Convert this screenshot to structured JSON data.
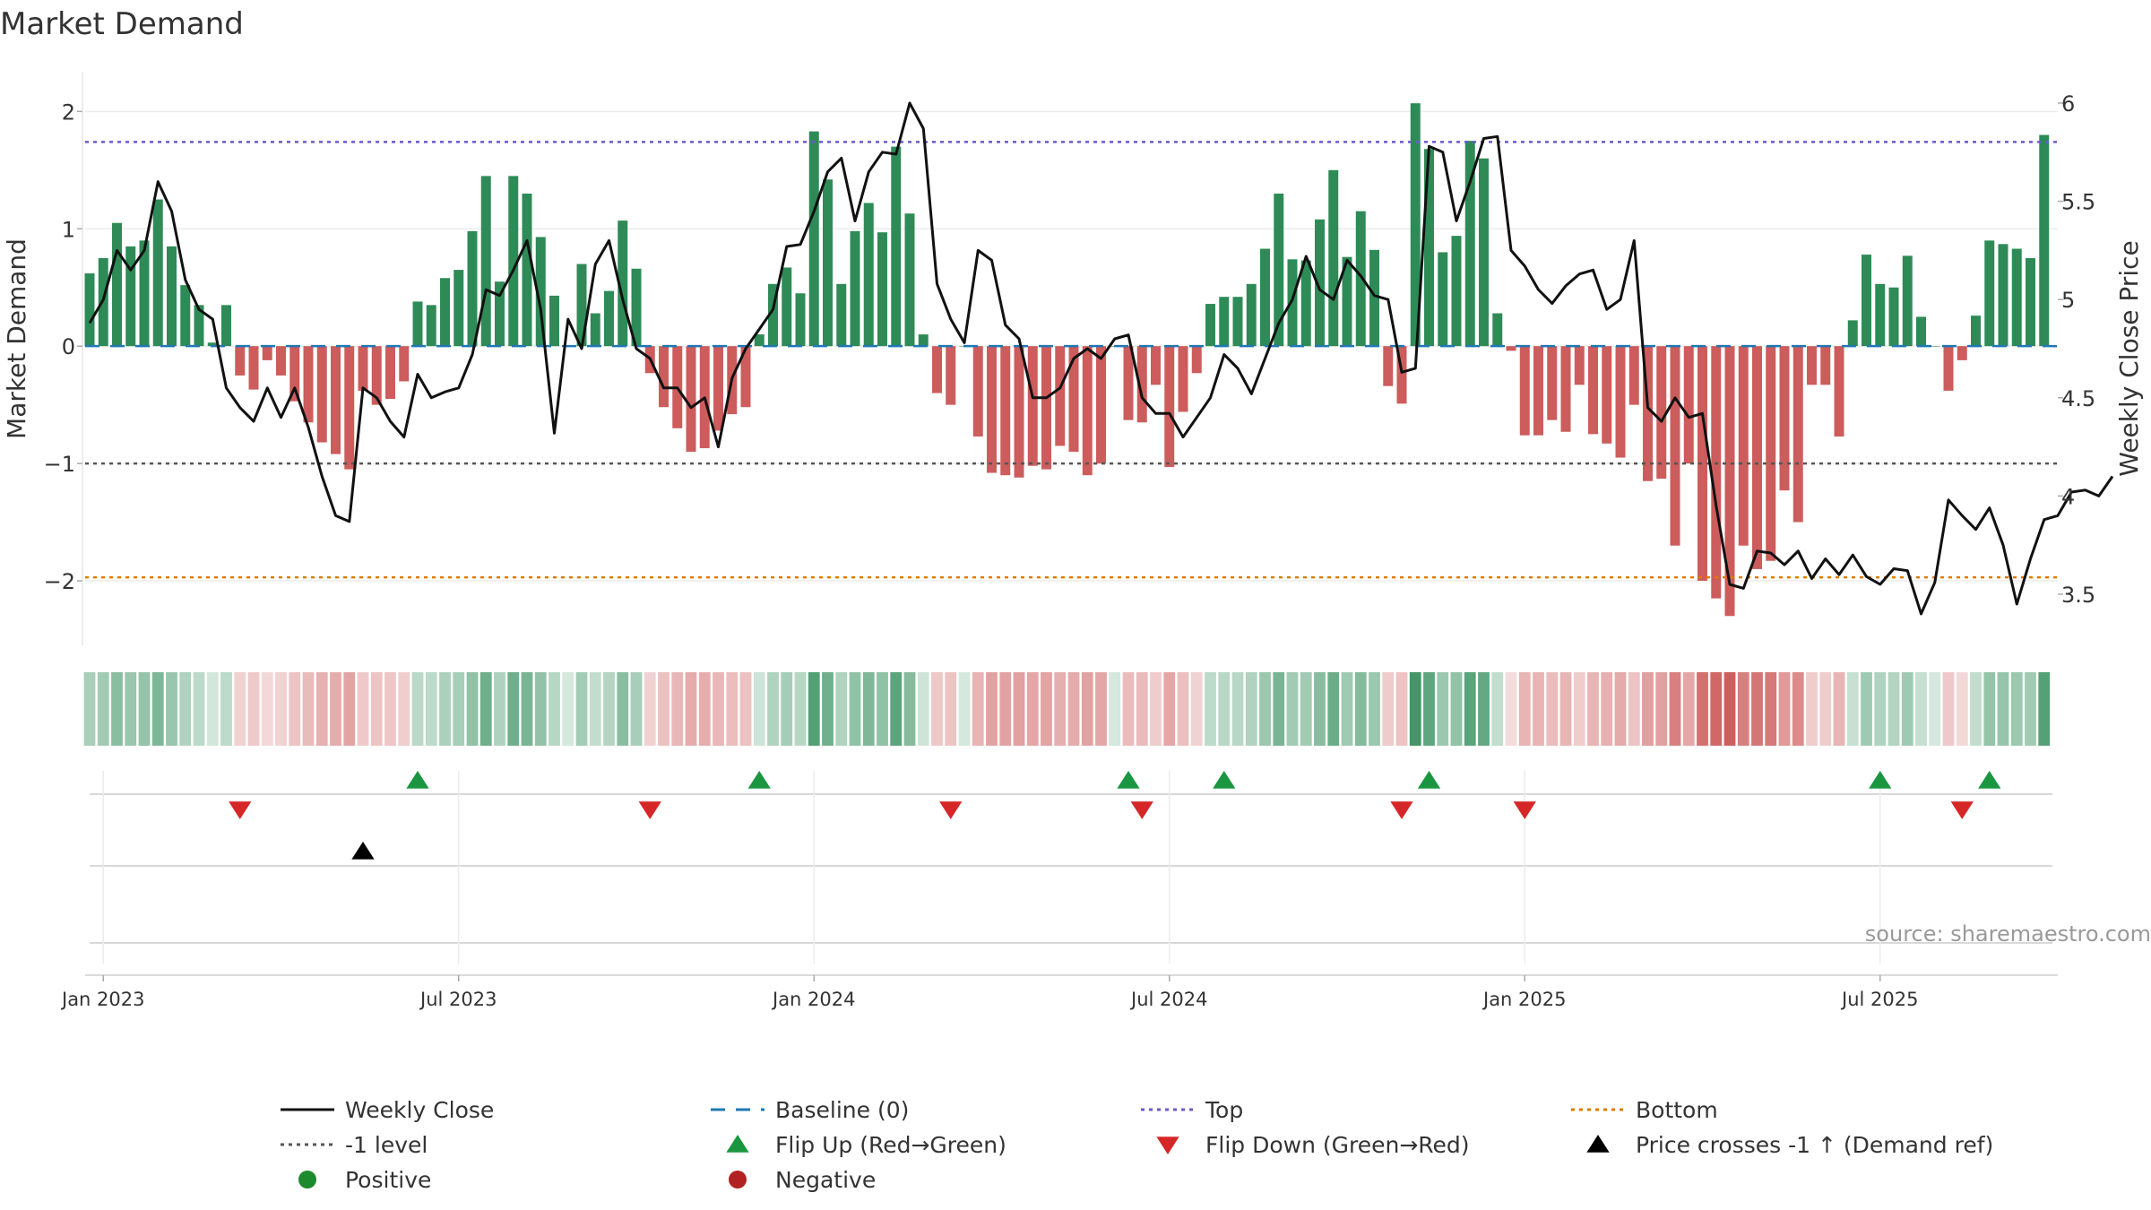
{
  "title": "Market Demand",
  "source": "source: sharemaestro.com",
  "colors": {
    "positive_bar": "#2e8b57",
    "negative_bar": "#cd5c5c",
    "price_line": "#111111",
    "baseline": "#1f77b4",
    "top_line": "#6a5acd",
    "minus1_line": "#555555",
    "bottom_line": "#e07b00",
    "flip_up": "#1a9641",
    "flip_down": "#d62728",
    "cross": "#000000",
    "positive_dot": "#1e8a2e",
    "negative_dot": "#b22222"
  },
  "chart_data": {
    "type": "bar",
    "title": "Market Demand",
    "ylabel": "Market Demand",
    "y2label": "Weekly Close Price",
    "ylim": [
      -2.55,
      2.4
    ],
    "y2lim": [
      3.2,
      6.2
    ],
    "yticks": [
      "−2",
      "−1",
      "0",
      "1",
      "2"
    ],
    "y2ticks": [
      "3.5",
      "4",
      "4.5",
      "5",
      "5.5",
      "6"
    ],
    "x_ticks": [
      {
        "label": "Jan 2023",
        "week": 1
      },
      {
        "label": "Jul 2023",
        "week": 27
      },
      {
        "label": "Jan 2024",
        "week": 53
      },
      {
        "label": "Jul 2024",
        "week": 79
      },
      {
        "label": "Jan 2025",
        "week": 105
      },
      {
        "label": "Jul 2025",
        "week": 131
      }
    ],
    "reference_lines": {
      "top": 1.74,
      "minus1": -1.0,
      "bottom": -1.97,
      "baseline": 0
    },
    "demand": [
      0.62,
      0.75,
      1.05,
      0.85,
      0.9,
      1.25,
      0.85,
      0.52,
      0.35,
      0.03,
      0.35,
      -0.25,
      -0.37,
      -0.12,
      -0.25,
      -0.47,
      -0.65,
      -0.82,
      -0.92,
      -1.05,
      -0.38,
      -0.5,
      -0.45,
      -0.3,
      0.38,
      0.35,
      0.58,
      0.65,
      0.98,
      1.45,
      0.55,
      1.45,
      1.3,
      0.93,
      0.43,
      0.0,
      0.7,
      0.28,
      0.47,
      1.07,
      0.66,
      -0.23,
      -0.52,
      -0.7,
      -0.9,
      -0.87,
      -0.72,
      -0.58,
      -0.52,
      0.1,
      0.53,
      0.67,
      0.45,
      1.83,
      1.42,
      0.53,
      0.98,
      1.22,
      0.97,
      1.7,
      1.13,
      0.1,
      -0.4,
      -0.5,
      0.0,
      -0.77,
      -1.08,
      -1.1,
      -1.12,
      -1.02,
      -1.05,
      -0.85,
      -0.9,
      -1.1,
      -1.0,
      0.0,
      -0.63,
      -0.65,
      -0.33,
      -1.03,
      -0.56,
      -0.23,
      0.36,
      0.42,
      0.42,
      0.53,
      0.83,
      1.3,
      0.74,
      0.73,
      1.08,
      1.5,
      0.76,
      1.15,
      0.82,
      -0.34,
      -0.49,
      2.07,
      1.68,
      0.8,
      0.94,
      1.75,
      1.6,
      0.28,
      -0.04,
      -0.76,
      -0.76,
      -0.63,
      -0.73,
      -0.33,
      -0.75,
      -0.83,
      -0.95,
      -0.5,
      -1.15,
      -1.13,
      -1.7,
      -1.0,
      -2.0,
      -2.15,
      -2.3,
      -1.7,
      -1.9,
      -1.83,
      -1.23,
      -1.5,
      -0.33,
      -0.33,
      -0.77,
      0.22,
      0.78,
      0.53,
      0.5,
      0.77,
      0.25,
      0.0,
      -0.38,
      -0.12,
      0.26,
      0.9,
      0.87,
      0.83,
      0.75,
      1.8
    ],
    "price": [
      4.88,
      5.0,
      5.25,
      5.15,
      5.25,
      5.6,
      5.45,
      5.1,
      4.95,
      4.9,
      4.55,
      4.45,
      4.38,
      4.55,
      4.4,
      4.55,
      4.35,
      4.1,
      3.9,
      3.87,
      4.55,
      4.5,
      4.38,
      4.3,
      4.62,
      4.5,
      4.53,
      4.55,
      4.72,
      5.05,
      5.02,
      5.15,
      5.3,
      4.95,
      4.32,
      4.9,
      4.75,
      5.18,
      5.3,
      5.0,
      4.75,
      4.7,
      4.55,
      4.55,
      4.45,
      4.5,
      4.25,
      4.6,
      4.75,
      4.85,
      4.95,
      5.27,
      5.28,
      5.45,
      5.65,
      5.72,
      5.4,
      5.65,
      5.75,
      5.74,
      6.0,
      5.87,
      5.08,
      4.9,
      4.78,
      5.25,
      5.2,
      4.87,
      4.8,
      4.5,
      4.5,
      4.55,
      4.7,
      4.75,
      4.7,
      4.8,
      4.82,
      4.5,
      4.42,
      4.42,
      4.3,
      4.4,
      4.5,
      4.72,
      4.65,
      4.52,
      4.7,
      4.88,
      5.0,
      5.22,
      5.05,
      5.0,
      5.2,
      5.12,
      5.02,
      5.0,
      4.63,
      4.65,
      5.78,
      5.75,
      5.4,
      5.6,
      5.82,
      5.83,
      5.25,
      5.17,
      5.05,
      4.98,
      5.07,
      5.13,
      5.15,
      4.95,
      5.0,
      5.3,
      4.45,
      4.38,
      4.5,
      4.4,
      4.42,
      3.95,
      3.55,
      3.53,
      3.72,
      3.71,
      3.65,
      3.72,
      3.58,
      3.68,
      3.6,
      3.7,
      3.59,
      3.55,
      3.63,
      3.62,
      3.4,
      3.56,
      3.98,
      3.9,
      3.83,
      3.94,
      3.75,
      3.45,
      3.68,
      3.88,
      3.9,
      4.02,
      4.03,
      4.0,
      4.1
    ],
    "flip_up": [
      24,
      49,
      76,
      83,
      98,
      131,
      139
    ],
    "flip_down": [
      11,
      41,
      63,
      77,
      96,
      105,
      137
    ],
    "price_cross_up": [
      20
    ],
    "legend": [
      {
        "label": "Weekly Close",
        "kind": "line-solid",
        "color": "#111111"
      },
      {
        "label": "Baseline (0)",
        "kind": "line-dash",
        "color": "#1f77b4"
      },
      {
        "label": "Top",
        "kind": "line-dot",
        "color": "#6a5acd"
      },
      {
        "label": "Bottom",
        "kind": "line-dot",
        "color": "#e07b00"
      },
      {
        "label": "-1 level",
        "kind": "line-dot",
        "color": "#555555"
      },
      {
        "label": "Flip Up (Red→Green)",
        "kind": "tri-up",
        "color": "#1a9641"
      },
      {
        "label": "Flip Down (Green→Red)",
        "kind": "tri-down",
        "color": "#d62728"
      },
      {
        "label": "Price crosses -1 ↑ (Demand ref)",
        "kind": "tri-up",
        "color": "#000000"
      },
      {
        "label": "Positive",
        "kind": "dot",
        "color": "#1e8a2e"
      },
      {
        "label": "Negative",
        "kind": "dot",
        "color": "#b22222"
      }
    ]
  }
}
